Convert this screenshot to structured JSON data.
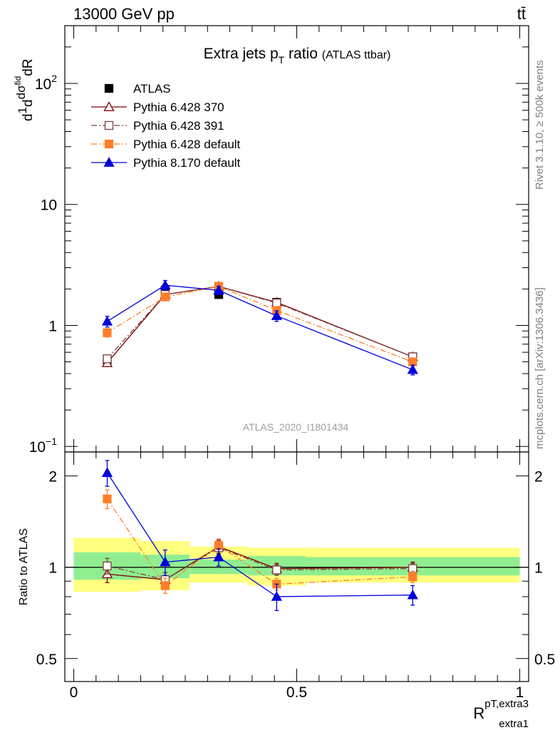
{
  "header": {
    "energy_label": "13000 GeV pp",
    "process_label": "tt̄"
  },
  "side_labels": {
    "rivet": "Rivet 3.1.10, ≥ 500k events",
    "mcplots": "mcplots.cern.ch [arXiv:1306.3436]"
  },
  "watermark": "ATLAS_2020_I1801434",
  "chart_data": [
    {
      "panel": "main",
      "type": "line",
      "title": "Extra jets p_T ratio",
      "title_main": "Extra jets p",
      "title_sub": "T",
      "title_rest": " ratio",
      "subtitle": "(ATLAS ttbar)",
      "ylabel": "1/σ dσ^fid / dR^{pT,extra3}_{extra1}",
      "yscale": "log",
      "ylim": [
        0.09,
        300
      ],
      "xlim": [
        -0.02,
        1.02
      ],
      "grid": false,
      "legend_position": "top-left",
      "ytick_labels": [
        {
          "value": 0.1,
          "base": "10",
          "exp": "−1"
        },
        {
          "value": 1,
          "base": "1",
          "exp": ""
        },
        {
          "value": 10,
          "base": "10",
          "exp": ""
        },
        {
          "value": 100,
          "base": "10",
          "exp": "2"
        }
      ],
      "series": [
        {
          "name": "ATLAS",
          "color": "#000000",
          "marker": "square-filled",
          "line": "none",
          "x": [
            0.075,
            0.205,
            0.325,
            0.455,
            0.76
          ],
          "y": [
            0.52,
            1.95,
            1.8,
            1.55,
            0.55
          ],
          "err": [
            0.03,
            0.1,
            0.08,
            0.07,
            0.03
          ]
        },
        {
          "name": "Pythia 6.428 370",
          "color": "#800000",
          "marker": "triangle-open",
          "line": "solid",
          "x": [
            0.075,
            0.205,
            0.325,
            0.455,
            0.76
          ],
          "y": [
            0.49,
            1.8,
            2.1,
            1.55,
            0.55
          ],
          "err": [
            0.03,
            0.1,
            0.1,
            0.08,
            0.03
          ]
        },
        {
          "name": "Pythia 6.428 391",
          "color": "#7f4040",
          "marker": "square-open",
          "line": "dashdot",
          "x": [
            0.075,
            0.205,
            0.325,
            0.455,
            0.76
          ],
          "y": [
            0.53,
            1.8,
            2.1,
            1.53,
            0.55
          ],
          "err": [
            0.03,
            0.1,
            0.1,
            0.08,
            0.03
          ]
        },
        {
          "name": "Pythia 6.428 default",
          "color": "#ff7f2a",
          "marker": "square-filled",
          "line": "dashdot",
          "x": [
            0.075,
            0.205,
            0.325,
            0.455,
            0.76
          ],
          "y": [
            0.87,
            1.72,
            2.1,
            1.33,
            0.5
          ],
          "err": [
            0.07,
            0.1,
            0.1,
            0.07,
            0.03
          ]
        },
        {
          "name": "Pythia 8.170 default",
          "color": "#0000dd",
          "marker": "triangle-filled",
          "line": "solid",
          "x": [
            0.075,
            0.205,
            0.325,
            0.455,
            0.76
          ],
          "y": [
            1.08,
            2.15,
            1.95,
            1.2,
            0.43
          ],
          "err": [
            0.11,
            0.2,
            0.15,
            0.12,
            0.04
          ]
        }
      ]
    },
    {
      "panel": "ratio",
      "type": "line",
      "xlabel": "R^{pT,extra3}_{extra1}",
      "xlabel_main": "R",
      "xlabel_sup": "pT,extra3",
      "xlabel_sub": "extra1",
      "ylabel": "Ratio to ATLAS",
      "yscale": "log",
      "ylim": [
        0.42,
        2.4
      ],
      "xlim": [
        -0.02,
        1.02
      ],
      "ytick_labels": [
        {
          "value": 0.5,
          "label": "0.5"
        },
        {
          "value": 1,
          "label": "1"
        },
        {
          "value": 2,
          "label": "2"
        }
      ],
      "xtick_labels": [
        {
          "value": 0,
          "label": "0"
        },
        {
          "value": 0.5,
          "label": "0.5"
        },
        {
          "value": 1,
          "label": "1"
        }
      ],
      "bands": {
        "outer_color": "#ffff80",
        "inner_color": "#90ee90",
        "bins": [
          {
            "x0": 0.0,
            "x1": 0.15,
            "outer": [
              0.83,
              1.25
            ],
            "inner": [
              0.91,
              1.12
            ]
          },
          {
            "x0": 0.15,
            "x1": 0.26,
            "outer": [
              0.84,
              1.22
            ],
            "inner": [
              0.92,
              1.1
            ]
          },
          {
            "x0": 0.26,
            "x1": 0.39,
            "outer": [
              0.89,
              1.17
            ],
            "inner": [
              0.95,
              1.06
            ]
          },
          {
            "x0": 0.39,
            "x1": 0.52,
            "outer": [
              0.87,
              1.16
            ],
            "inner": [
              0.94,
              1.09
            ]
          },
          {
            "x0": 0.52,
            "x1": 1.0,
            "outer": [
              0.89,
              1.16
            ],
            "inner": [
              0.94,
              1.08
            ]
          }
        ]
      },
      "series": [
        {
          "name": "Pythia 6.428 370",
          "color": "#800000",
          "marker": "triangle-open",
          "line": "solid",
          "x": [
            0.075,
            0.205,
            0.325,
            0.455,
            0.76
          ],
          "y": [
            0.95,
            0.91,
            1.17,
            0.99,
            1.0
          ],
          "err": [
            0.06,
            0.05,
            0.06,
            0.04,
            0.04
          ]
        },
        {
          "name": "Pythia 6.428 391",
          "color": "#7f4040",
          "marker": "square-open",
          "line": "dashdot",
          "x": [
            0.075,
            0.205,
            0.325,
            0.455,
            0.76
          ],
          "y": [
            1.01,
            0.91,
            1.16,
            0.98,
            0.99
          ],
          "err": [
            0.06,
            0.05,
            0.06,
            0.04,
            0.04
          ]
        },
        {
          "name": "Pythia 6.428 default",
          "color": "#ff7f2a",
          "marker": "square-filled",
          "line": "dashdot",
          "x": [
            0.075,
            0.205,
            0.325,
            0.455,
            0.76
          ],
          "y": [
            1.68,
            0.87,
            1.18,
            0.88,
            0.93
          ],
          "err": [
            0.12,
            0.05,
            0.06,
            0.04,
            0.04
          ]
        },
        {
          "name": "Pythia 8.170 default",
          "color": "#0000dd",
          "marker": "triangle-filled",
          "line": "solid",
          "x": [
            0.075,
            0.205,
            0.325,
            0.455,
            0.76
          ],
          "y": [
            2.05,
            1.04,
            1.08,
            0.8,
            0.81
          ],
          "err": [
            0.2,
            0.1,
            0.07,
            0.08,
            0.06
          ]
        }
      ]
    }
  ]
}
